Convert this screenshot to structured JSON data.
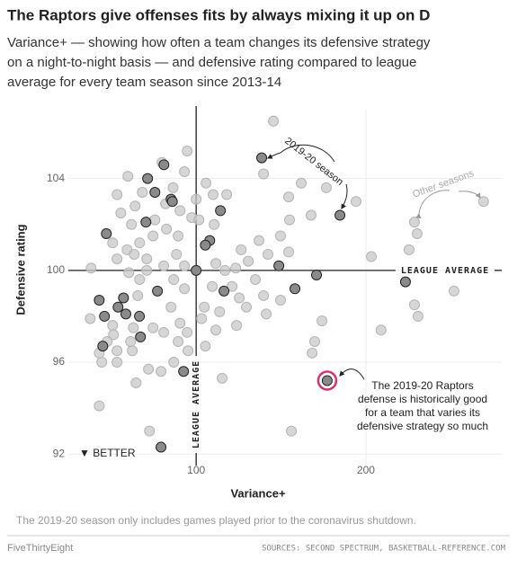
{
  "chart_data": {
    "type": "scatter",
    "title": "The Raptors give offenses fits by always mixing it up on D",
    "subtitle": [
      "Variance+ — showing how often a team changes its defensive strategy",
      "on a night-to-night basis — and defensive rating compared to league",
      "average for every team season since 2013-14"
    ],
    "x_label": "Variance+",
    "y_label": "Defensive rating",
    "xlim": [
      30,
      280
    ],
    "ylim": [
      91.5,
      107
    ],
    "xticks": [
      100,
      200
    ],
    "yticks": [
      92,
      96,
      100,
      104
    ],
    "grid": true,
    "reference_lines": [
      {
        "axis": "x",
        "value": 100,
        "label": "LEAGUE AVERAGE"
      },
      {
        "axis": "y",
        "value": 100,
        "label": "LEAGUE AVERAGE"
      }
    ],
    "annotations": {
      "season_label": "2019-20 season",
      "other_label": "Other seasons",
      "better": "▼ BETTER",
      "callout": [
        "The 2019-20 Raptors",
        "defense is historically good",
        "for a team that varies its",
        "defensive strategy so much"
      ]
    },
    "series": [
      {
        "color": "#c8c8c8",
        "edge_color": "#b4b4b4",
        "x": [
          145.5,
          139.7,
          154.5,
          161.9,
          176.7,
          194.2,
          167.7,
          155,
          149.7,
          137,
          130.7,
          142.3,
          154.5,
          134.9,
          139.7,
          149.7,
          141.3,
          129.6,
          123.8,
          113.8,
          174.1,
          169.8,
          168.3,
          203.2,
          225.4,
          228.6,
          230.2,
          269.3,
          251.9,
          228.6,
          230.7,
          208.9,
          156.1,
          115.3,
          79.9,
          93.1,
          94.7,
          59.8,
          53.4,
          68.3,
          86.4,
          100,
          105.8,
          110,
          118,
          55.6,
          64,
          82,
          90.5,
          97.4,
          61.9,
          75.7,
          82.5,
          101.6,
          110.6,
          50.8,
          59.3,
          66.7,
          74.6,
          89.4,
          38.1,
          53.4,
          63.5,
          70.9,
          80.9,
          88.4,
          93.1,
          111.6,
          117,
          123.3,
          126.5,
          60.3,
          66.7,
          70.9,
          86.8,
          93.1,
          109.5,
          121.2,
          125.4,
          37.6,
          50.8,
          65.6,
          85.2,
          90.5,
          103.2,
          104.8,
          63,
          74.6,
          80.9,
          94.7,
          51.3,
          42.9,
          53.4,
          62.4,
          71.9,
          89.4,
          95.2,
          86.8,
          105.4,
          111.6,
          53.4,
          44.4,
          64.6,
          79.3,
          42.9,
          72.5,
          47.6,
          61.4
        ],
        "y": [
          106.5,
          104.2,
          103.2,
          103.8,
          103.6,
          103.0,
          102.4,
          102.2,
          101.5,
          101.3,
          100.4,
          100.7,
          100.8,
          99.6,
          98.9,
          98.7,
          98.1,
          98.4,
          97.6,
          98.2,
          97.8,
          96.9,
          96.4,
          100.6,
          100.9,
          102.1,
          101.6,
          103.0,
          99.1,
          98.5,
          98.0,
          97.4,
          93.0,
          95.3,
          104.7,
          104.3,
          105.2,
          104.1,
          103.3,
          103.4,
          103.6,
          103.1,
          103.8,
          103.3,
          103.3,
          102.5,
          102.8,
          102.9,
          102.6,
          102.3,
          102.0,
          102.2,
          101.8,
          102.2,
          102.0,
          101.2,
          100.9,
          101.2,
          101.5,
          101.5,
          100.1,
          100.5,
          100.7,
          100.5,
          100.2,
          100.7,
          100.2,
          100.3,
          100,
          100.1,
          100.9,
          99.9,
          99.6,
          100,
          99.6,
          99.2,
          99.3,
          99.3,
          98.8,
          97.9,
          97.6,
          98.9,
          98.4,
          97.7,
          97.9,
          98.4,
          97.5,
          97.5,
          97.3,
          97.3,
          97.2,
          96.4,
          96,
          96.5,
          95.7,
          96.9,
          96.5,
          96,
          96.7,
          97.4,
          96.5,
          96,
          95.1,
          95.6,
          94.1,
          93.0,
          96.9,
          96.9
        ]
      },
      {
        "color": "#8a8a8a",
        "edge_color": "#222222",
        "x": [
          138.6,
          184.7,
          71.4,
          81,
          75.7,
          85.2,
          86,
          70.4,
          47.1,
          114.3,
          108,
          105.4,
          100,
          148.7,
          170.9,
          158.2,
          223.3,
          77.2,
          116.4,
          42.9,
          57.2,
          54,
          46,
          58.6,
          66.6,
          67.2,
          45,
          92.6,
          79.3
        ],
        "y": [
          104.9,
          102.4,
          104.0,
          104.6,
          103.4,
          103.1,
          103.0,
          102.1,
          101.6,
          102.6,
          101.3,
          101.1,
          100,
          100.2,
          99.8,
          99.2,
          99.5,
          99.1,
          99.1,
          98.7,
          98.8,
          98.4,
          98.0,
          98.1,
          98.0,
          97.1,
          96.7,
          95.6,
          92.3
        ]
      },
      {
        "color": "#8a8a8a",
        "edge_color": "#222222",
        "ring_color": "#d6336c",
        "x": [
          177.2
        ],
        "y": [
          95.2
        ]
      }
    ],
    "footnote": "The 2019-20 season only includes games played prior to the coronavirus shutdown.",
    "brand": "FiveThirtyEight",
    "sources": "SOURCES: SECOND SPECTRUM, BASKETBALL-REFERENCE.COM"
  }
}
